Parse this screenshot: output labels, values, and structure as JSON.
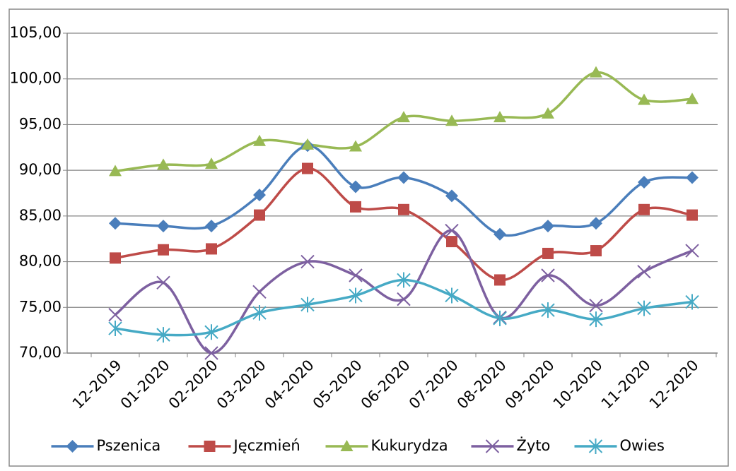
{
  "chart_data": {
    "type": "line",
    "categories": [
      "12-2019",
      "01-2020",
      "02-2020",
      "03-2020",
      "04-2020",
      "05-2020",
      "06-2020",
      "07-2020",
      "08-2020",
      "09-2020",
      "10-2020",
      "11-2020",
      "12-2020"
    ],
    "series": [
      {
        "name": "Pszenica",
        "color": "#4a7ebb",
        "marker": "diamond",
        "values": [
          84.2,
          83.9,
          83.9,
          87.3,
          92.7,
          88.2,
          89.2,
          87.2,
          83.0,
          83.9,
          84.2,
          88.7,
          89.2
        ]
      },
      {
        "name": "Jęczmień",
        "color": "#be4b48",
        "marker": "square",
        "values": [
          80.4,
          81.3,
          81.4,
          85.1,
          90.2,
          86.0,
          85.7,
          82.2,
          78.0,
          80.9,
          81.2,
          85.7,
          85.1
        ]
      },
      {
        "name": "Kukurydza",
        "color": "#98b954",
        "marker": "triangle",
        "values": [
          89.9,
          90.6,
          90.7,
          93.2,
          92.8,
          92.6,
          95.8,
          95.4,
          95.8,
          96.2,
          100.7,
          97.7,
          97.8
        ]
      },
      {
        "name": "Żyto",
        "color": "#7d60a0",
        "marker": "x",
        "values": [
          74.2,
          77.7,
          70.0,
          76.7,
          80.0,
          78.5,
          75.9,
          83.4,
          73.9,
          78.5,
          75.2,
          78.9,
          81.2
        ]
      },
      {
        "name": "Owies",
        "color": "#46aac5",
        "marker": "star",
        "values": [
          72.7,
          72.0,
          72.3,
          74.4,
          75.3,
          76.3,
          78.0,
          76.3,
          73.8,
          74.7,
          73.7,
          74.9,
          75.6
        ]
      }
    ],
    "ylim": [
      70,
      105
    ],
    "yticks": [
      {
        "value": 70,
        "label": "70,00"
      },
      {
        "value": 75,
        "label": "75,00"
      },
      {
        "value": 80,
        "label": "80,00"
      },
      {
        "value": 85,
        "label": "85,00"
      },
      {
        "value": 90,
        "label": "90,00"
      },
      {
        "value": 95,
        "label": "95,00"
      },
      {
        "value": 100,
        "label": "100,00"
      },
      {
        "value": 105,
        "label": "105,00"
      }
    ],
    "grid": true,
    "smooth": true,
    "legend": "bottom"
  }
}
